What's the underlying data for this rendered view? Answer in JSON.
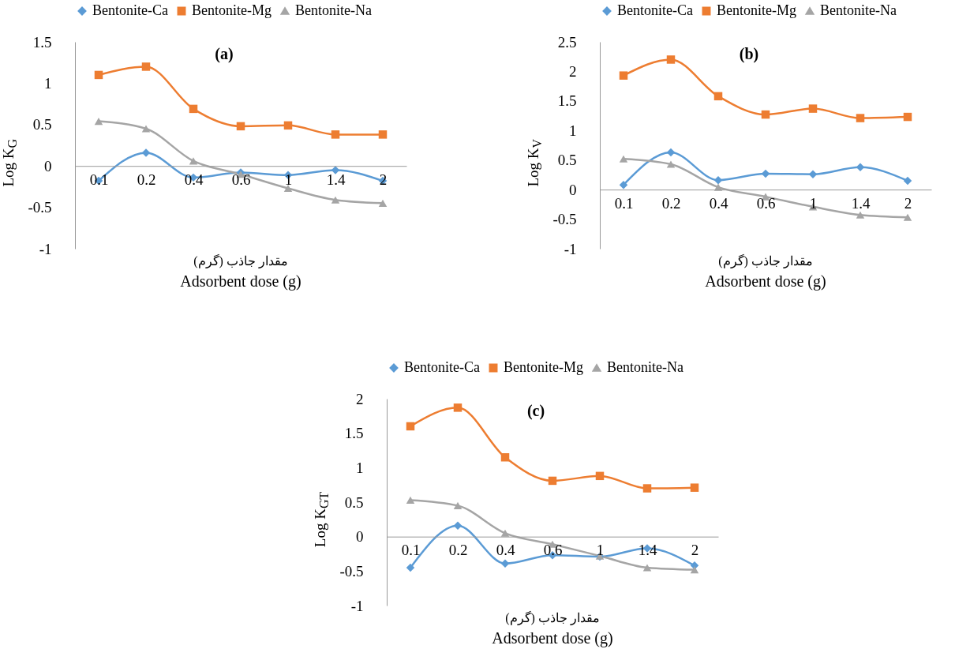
{
  "chart_data": [
    {
      "type": "line",
      "title": "(a)",
      "xlabel": "مقدار جاذب (گرم)\nAdsorbent dose (g)",
      "ylabel": "Log K$_{G}$",
      "categories": [
        "0.1",
        "0.2",
        "0.4",
        "0.6",
        "1",
        "1.4",
        "2"
      ],
      "ylim": [
        -1,
        1.5
      ],
      "yticks": [
        -1,
        -0.5,
        0,
        0.5,
        1,
        1.5
      ],
      "grid": false,
      "legend": "top",
      "series": [
        {
          "name": "Bentonite-Ca",
          "color": "#5b9bd5",
          "marker": "diamond",
          "values": [
            -0.18,
            0.16,
            -0.14,
            -0.08,
            -0.11,
            -0.05,
            -0.18
          ]
        },
        {
          "name": "Bentonite-Mg",
          "color": "#ed7d31",
          "marker": "square",
          "values": [
            1.1,
            1.2,
            0.69,
            0.48,
            0.49,
            0.38,
            0.38
          ]
        },
        {
          "name": "Bentonite-Na",
          "color": "#a5a5a5",
          "marker": "triangle",
          "values": [
            0.54,
            0.45,
            0.06,
            -0.1,
            -0.27,
            -0.41,
            -0.45
          ]
        }
      ]
    },
    {
      "type": "line",
      "title": "(b)",
      "xlabel": "مقدار جاذب (گرم)\nAdsorbent dose (g)",
      "ylabel": "Log K$_{V}$",
      "categories": [
        "0.1",
        "0.2",
        "0.4",
        "0.6",
        "1",
        "1.4",
        "2"
      ],
      "ylim": [
        -1,
        2.5
      ],
      "yticks": [
        -1,
        -0.5,
        0,
        0.5,
        1,
        1.5,
        2,
        2.5
      ],
      "grid": false,
      "legend": "top",
      "series": [
        {
          "name": "Bentonite-Ca",
          "color": "#5b9bd5",
          "marker": "diamond",
          "values": [
            0.08,
            0.63,
            0.16,
            0.27,
            0.26,
            0.38,
            0.15
          ]
        },
        {
          "name": "Bentonite-Mg",
          "color": "#ed7d31",
          "marker": "square",
          "values": [
            1.93,
            2.2,
            1.58,
            1.27,
            1.37,
            1.21,
            1.23
          ]
        },
        {
          "name": "Bentonite-Na",
          "color": "#a5a5a5",
          "marker": "triangle",
          "values": [
            0.52,
            0.43,
            0.04,
            -0.12,
            -0.29,
            -0.43,
            -0.47
          ]
        }
      ]
    },
    {
      "type": "line",
      "title": "(c)",
      "xlabel": "مقدار جاذب (گرم)\nAdsorbent dose (g)",
      "ylabel": "Log K$_{GT}$",
      "categories": [
        "0.1",
        "0.2",
        "0.4",
        "0.6",
        "1",
        "1.4",
        "2"
      ],
      "ylim": [
        -1,
        2
      ],
      "yticks": [
        -1,
        -0.5,
        0,
        0.5,
        1,
        1.5,
        2
      ],
      "grid": false,
      "legend": "top",
      "series": [
        {
          "name": "Bentonite-Ca",
          "color": "#5b9bd5",
          "marker": "diamond",
          "values": [
            -0.45,
            0.16,
            -0.39,
            -0.27,
            -0.29,
            -0.17,
            -0.42
          ]
        },
        {
          "name": "Bentonite-Mg",
          "color": "#ed7d31",
          "marker": "square",
          "values": [
            1.6,
            1.87,
            1.15,
            0.81,
            0.88,
            0.7,
            0.71
          ]
        },
        {
          "name": "Bentonite-Na",
          "color": "#a5a5a5",
          "marker": "triangle",
          "values": [
            0.53,
            0.45,
            0.05,
            -0.11,
            -0.28,
            -0.45,
            -0.48
          ]
        }
      ]
    }
  ]
}
